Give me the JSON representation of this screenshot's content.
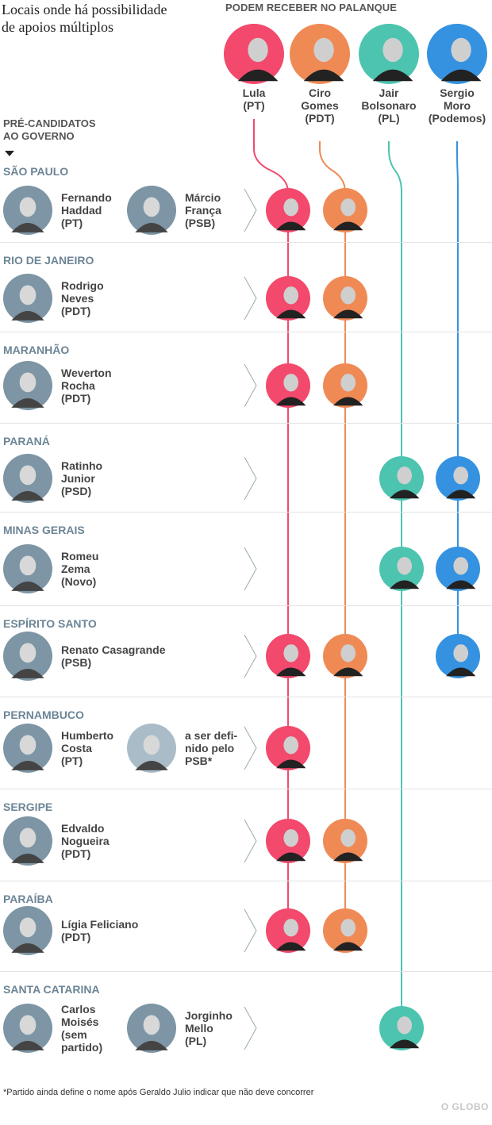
{
  "title": "Locais onde há possibilidade\nde apoios múltiplos",
  "column_header": "PODEM RECEBER NO PALANQUE",
  "left_header": "PRÉ-CANDIDATOS\nAO GOVERNO",
  "presidential": [
    {
      "id": "lula",
      "label": "Lula\n(PT)",
      "color": "#f2496c"
    },
    {
      "id": "ciro",
      "label": "Ciro\nGomes\n(PDT)",
      "color": "#f08a55"
    },
    {
      "id": "bolsonaro",
      "label": "Jair\nBolsonaro\n(PL)",
      "color": "#4cc4b0"
    },
    {
      "id": "moro",
      "label": "Sergio\nMoro\n(Podemos)",
      "color": "#3592e0"
    }
  ],
  "states": [
    {
      "name": "SÃO PAULO",
      "candidates": [
        "Fernando\nHaddad\n(PT)",
        "Márcio\nFrança\n(PSB)"
      ],
      "supports": [
        "lula",
        "ciro"
      ]
    },
    {
      "name": "RIO DE JANEIRO",
      "candidates": [
        "Rodrigo\nNeves\n(PDT)"
      ],
      "supports": [
        "lula",
        "ciro"
      ]
    },
    {
      "name": "MARANHÃO",
      "candidates": [
        "Weverton\nRocha\n(PDT)"
      ],
      "supports": [
        "lula",
        "ciro"
      ]
    },
    {
      "name": "PARANÁ",
      "candidates": [
        "Ratinho\nJunior\n(PSD)"
      ],
      "supports": [
        "bolsonaro",
        "moro"
      ]
    },
    {
      "name": "MINAS GERAIS",
      "candidates": [
        "Romeu\nZema\n(Novo)"
      ],
      "supports": [
        "bolsonaro",
        "moro"
      ]
    },
    {
      "name": "ESPÍRITO SANTO",
      "candidates": [
        "Renato Casagrande\n(PSB)"
      ],
      "supports": [
        "lula",
        "ciro",
        "moro"
      ]
    },
    {
      "name": "PERNAMBUCO",
      "candidates": [
        "Humberto\nCosta\n(PT)",
        "a ser defi-\nnido pelo\nPSB*"
      ],
      "placeholder_second": true,
      "supports": [
        "lula"
      ]
    },
    {
      "name": "SERGIPE",
      "candidates": [
        "Edvaldo\nNogueira\n(PDT)"
      ],
      "supports": [
        "lula",
        "ciro"
      ]
    },
    {
      "name": "PARAÍBA",
      "candidates": [
        "Lígia Feliciano\n(PDT)"
      ],
      "supports": [
        "lula",
        "ciro"
      ]
    },
    {
      "name": "SANTA CATARINA",
      "candidates": [
        "Carlos\nMoisés\n(sem\npartido)",
        "Jorginho\nMello\n(PL)"
      ],
      "supports": [
        "bolsonaro"
      ]
    }
  ],
  "footnote": "*Partido ainda define o nome após Geraldo Julio indicar que não deve concorrer",
  "logo": "O GLOBO",
  "candidate_photo_bg": "#7d95a5",
  "placeholder_bg": "#a9bcc8"
}
